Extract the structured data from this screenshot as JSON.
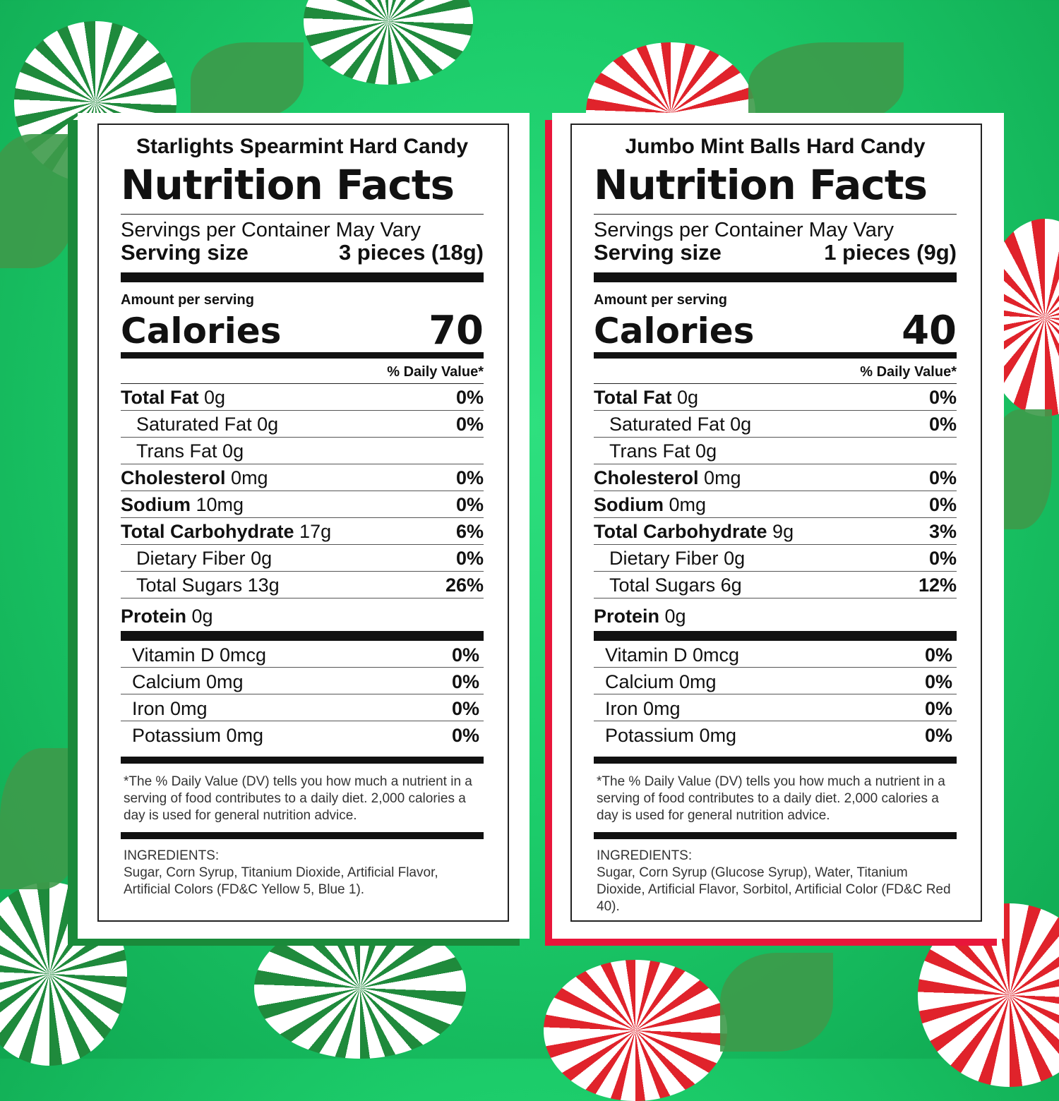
{
  "colors": {
    "background": "#1ccc6a",
    "left_accent": "#1a8a3a",
    "right_accent": "#e8163a"
  },
  "panels": [
    {
      "product": "Starlights Spearmint Hard Candy",
      "title": "Nutrition Facts",
      "servings": "Servings per Container May Vary",
      "serving_size_label": "Serving size",
      "serving_size": "3 pieces (18g)",
      "amount_label": "Amount per serving",
      "calories_label": "Calories",
      "calories": "70",
      "dv_header": "% Daily Value*",
      "nutrients": [
        {
          "name": "Total Fat",
          "amount": "0g",
          "dv": "0%",
          "bold": true,
          "indent": false
        },
        {
          "name": "Saturated Fat",
          "amount": "0g",
          "dv": "0%",
          "bold": false,
          "indent": true
        },
        {
          "name": "Trans Fat",
          "amount": "0g",
          "dv": "",
          "bold": false,
          "indent": true
        },
        {
          "name": "Cholesterol",
          "amount": "0mg",
          "dv": "0%",
          "bold": true,
          "indent": false
        },
        {
          "name": "Sodium",
          "amount": "10mg",
          "dv": "0%",
          "bold": true,
          "indent": false
        },
        {
          "name": "Total Carbohydrate",
          "amount": "17g",
          "dv": "6%",
          "bold": true,
          "indent": false
        },
        {
          "name": "Dietary Fiber",
          "amount": "0g",
          "dv": "0%",
          "bold": false,
          "indent": true
        },
        {
          "name": "Total Sugars",
          "amount": "13g",
          "dv": "26%",
          "bold": false,
          "indent": true
        },
        {
          "name": "Protein",
          "amount": "0g",
          "dv": "",
          "bold": true,
          "indent": false
        }
      ],
      "vitamins": [
        {
          "name": "Vitamin D 0mcg",
          "dv": "0%"
        },
        {
          "name": "Calcium 0mg",
          "dv": "0%"
        },
        {
          "name": "Iron 0mg",
          "dv": "0%"
        },
        {
          "name": "Potassium 0mg",
          "dv": "0%"
        }
      ],
      "footnote": "*The % Daily Value (DV) tells you how much a nutrient in a serving of food contributes to a daily diet. 2,000 calories a day is used for general nutrition advice.",
      "ingredients_label": "INGREDIENTS:",
      "ingredients": "Sugar, Corn Syrup, Titanium Dioxide, Artificial Flavor, Artificial Colors (FD&C Yellow 5, Blue 1)."
    },
    {
      "product": "Jumbo Mint Balls Hard Candy",
      "title": "Nutrition Facts",
      "servings": "Servings per Container May Vary",
      "serving_size_label": "Serving size",
      "serving_size": "1 pieces (9g)",
      "amount_label": "Amount per serving",
      "calories_label": "Calories",
      "calories": "40",
      "dv_header": "% Daily Value*",
      "nutrients": [
        {
          "name": "Total Fat",
          "amount": "0g",
          "dv": "0%",
          "bold": true,
          "indent": false
        },
        {
          "name": "Saturated Fat",
          "amount": "0g",
          "dv": "0%",
          "bold": false,
          "indent": true
        },
        {
          "name": "Trans Fat",
          "amount": "0g",
          "dv": "",
          "bold": false,
          "indent": true
        },
        {
          "name": "Cholesterol",
          "amount": "0mg",
          "dv": "0%",
          "bold": true,
          "indent": false
        },
        {
          "name": "Sodium",
          "amount": "0mg",
          "dv": "0%",
          "bold": true,
          "indent": false
        },
        {
          "name": "Total Carbohydrate",
          "amount": "9g",
          "dv": "3%",
          "bold": true,
          "indent": false
        },
        {
          "name": "Dietary Fiber",
          "amount": "0g",
          "dv": "0%",
          "bold": false,
          "indent": true
        },
        {
          "name": "Total Sugars",
          "amount": "6g",
          "dv": "12%",
          "bold": false,
          "indent": true
        },
        {
          "name": "Protein",
          "amount": "0g",
          "dv": "",
          "bold": true,
          "indent": false
        }
      ],
      "vitamins": [
        {
          "name": "Vitamin D 0mcg",
          "dv": "0%"
        },
        {
          "name": "Calcium 0mg",
          "dv": "0%"
        },
        {
          "name": "Iron 0mg",
          "dv": "0%"
        },
        {
          "name": "Potassium 0mg",
          "dv": "0%"
        }
      ],
      "footnote": "*The % Daily Value (DV) tells you how much a nutrient in a serving of food contributes to a daily diet. 2,000 calories a day is used for general nutrition advice.",
      "ingredients_label": "INGREDIENTS:",
      "ingredients": "Sugar, Corn Syrup (Glucose Syrup), Water, Titanium Dioxide, Artificial Flavor, Sorbitol, Artificial Color (FD&C Red 40)."
    }
  ]
}
